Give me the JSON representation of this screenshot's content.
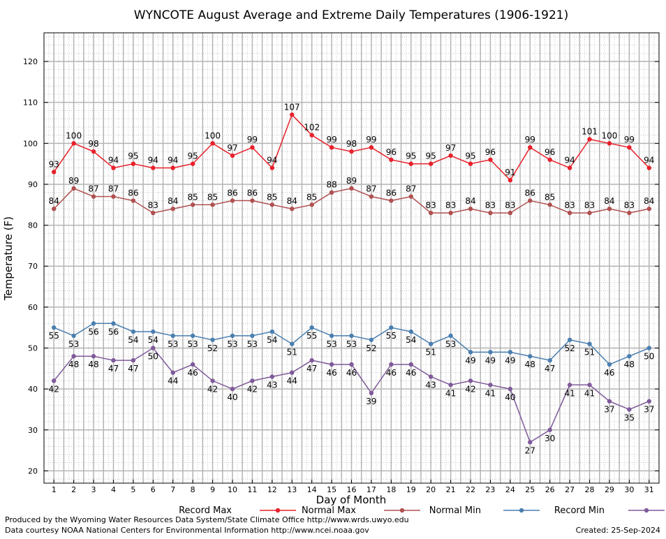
{
  "chart_data": {
    "type": "line",
    "title": "WYNCOTE August Average and Extreme Daily Temperatures (1906-1921)",
    "xlabel": "Day of Month",
    "ylabel": "Temperature (F)",
    "x": [
      1,
      2,
      3,
      4,
      5,
      6,
      7,
      8,
      9,
      10,
      11,
      12,
      13,
      14,
      15,
      16,
      17,
      18,
      19,
      20,
      21,
      22,
      23,
      24,
      25,
      26,
      27,
      28,
      29,
      30,
      31
    ],
    "xlim": [
      0.5,
      31.5
    ],
    "ylim": [
      17,
      127
    ],
    "yticks": [
      20,
      30,
      40,
      50,
      60,
      70,
      80,
      90,
      100,
      110,
      120
    ],
    "grid": true,
    "legend_position": "bottom",
    "series": [
      {
        "name": "Record Max",
        "color": "#e8202a",
        "label_pos": "above",
        "values": [
          93,
          100,
          98,
          94,
          95,
          94,
          94,
          95,
          100,
          97,
          99,
          94,
          107,
          102,
          99,
          98,
          99,
          96,
          95,
          95,
          97,
          95,
          96,
          91,
          99,
          96,
          94,
          101,
          100,
          99,
          94
        ]
      },
      {
        "name": "Normal Max",
        "color": "#b05050",
        "label_pos": "above",
        "values": [
          84,
          89,
          87,
          87,
          86,
          83,
          84,
          85,
          85,
          86,
          86,
          85,
          84,
          85,
          88,
          89,
          87,
          86,
          87,
          83,
          83,
          84,
          83,
          83,
          86,
          85,
          83,
          83,
          84,
          83,
          84
        ]
      },
      {
        "name": "Normal Min",
        "color": "#4a7fb0",
        "label_pos": "below",
        "values": [
          55,
          53,
          56,
          56,
          54,
          54,
          53,
          53,
          52,
          53,
          53,
          54,
          51,
          55,
          53,
          53,
          52,
          55,
          54,
          51,
          53,
          49,
          49,
          49,
          48,
          47,
          52,
          51,
          46,
          48,
          50
        ]
      },
      {
        "name": "Record Min",
        "color": "#7f5a9a",
        "label_pos": "below",
        "values": [
          42,
          48,
          48,
          47,
          47,
          50,
          44,
          46,
          42,
          40,
          42,
          43,
          44,
          47,
          46,
          46,
          39,
          46,
          46,
          43,
          41,
          42,
          41,
          40,
          27,
          30,
          41,
          41,
          37,
          35,
          37
        ]
      }
    ]
  },
  "footer": {
    "produced_by": "Produced by the Wyoming Water Resources Data System/State Climate Office http://www.wrds.uwyo.edu",
    "courtesy": "Data courtesy NOAA National Centers for Environmental Information http://www.ncei.noaa.gov",
    "created": "Created:  25-Sep-2024"
  }
}
